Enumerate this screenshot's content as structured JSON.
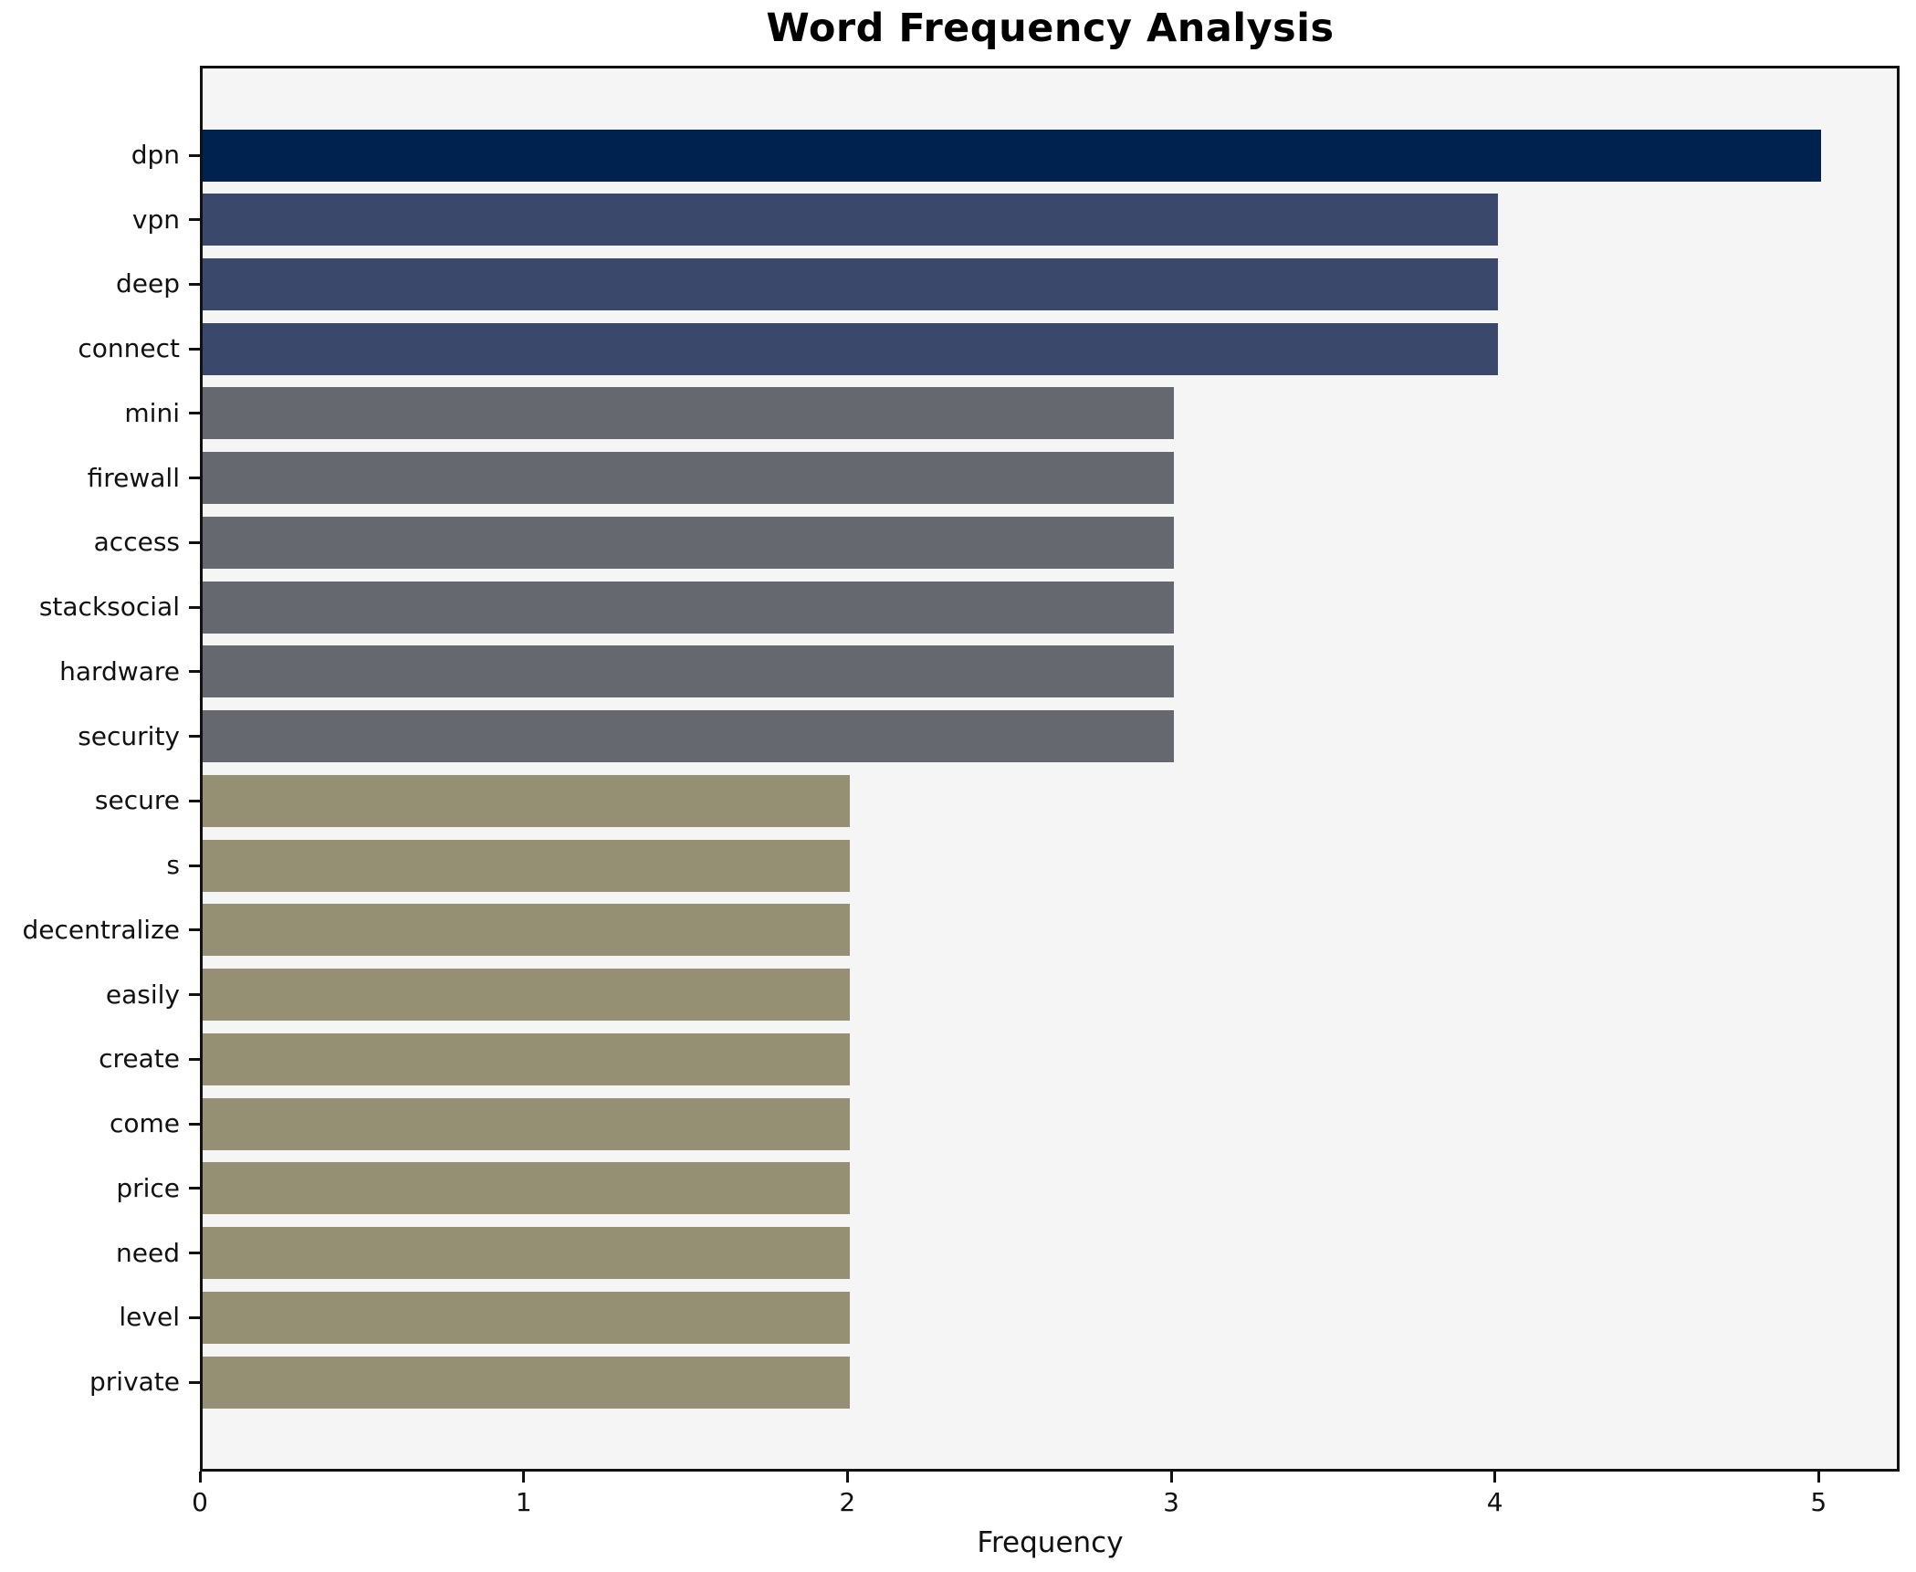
{
  "chart_data": {
    "type": "bar",
    "orientation": "horizontal",
    "title": "Word Frequency Analysis",
    "xlabel": "Frequency",
    "ylabel": "",
    "categories": [
      "dpn",
      "vpn",
      "deep",
      "connect",
      "mini",
      "firewall",
      "access",
      "stacksocial",
      "hardware",
      "security",
      "secure",
      "s",
      "decentralize",
      "easily",
      "create",
      "come",
      "price",
      "need",
      "level",
      "private"
    ],
    "values": [
      5,
      4,
      4,
      4,
      3,
      3,
      3,
      3,
      3,
      3,
      2,
      2,
      2,
      2,
      2,
      2,
      2,
      2,
      2,
      2
    ],
    "xticks": [
      0,
      1,
      2,
      3,
      4,
      5
    ],
    "xlim": [
      0,
      5.25
    ],
    "grid": false,
    "legend": false,
    "colors": {
      "bar_color_by_value": {
        "5": "#00224e",
        "4": "#3a496b",
        "3": "#666870",
        "2": "#958f74"
      },
      "plot_background": "#f5f5f6",
      "figure_background": "#ffffff",
      "axis_color": "#111111",
      "text_color": "#000000"
    }
  }
}
